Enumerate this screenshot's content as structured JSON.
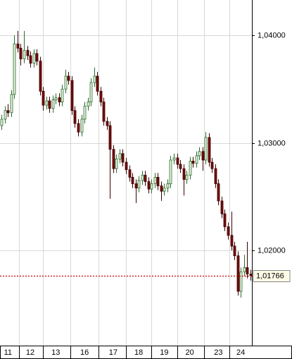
{
  "chart_data": {
    "type": "candlestick",
    "categories": [
      null,
      null,
      "11",
      null,
      null,
      null,
      null,
      null,
      null,
      "12",
      null,
      null,
      null,
      null,
      null,
      null,
      null,
      "13",
      null,
      null,
      null,
      null,
      null,
      null,
      null,
      null,
      "16",
      null,
      null,
      null,
      null,
      null,
      null,
      null,
      null,
      "17",
      null,
      null,
      null,
      null,
      null,
      null,
      null,
      "18",
      null,
      null,
      null,
      null,
      null,
      null,
      null,
      "19",
      null,
      null,
      null,
      null,
      null,
      null,
      null,
      "20",
      null,
      null,
      null,
      null,
      null,
      null,
      null,
      null,
      "23",
      null,
      null,
      null,
      null,
      null,
      null,
      "24",
      null,
      null,
      null
    ],
    "open": [
      1.0316,
      1.0322,
      1.033,
      1.0328,
      1.0345,
      1.0392,
      1.0388,
      1.0378,
      1.0386,
      1.0381,
      1.0374,
      1.0383,
      1.0376,
      1.0348,
      1.0335,
      1.0339,
      1.0332,
      1.034,
      1.0342,
      1.0338,
      1.035,
      1.0362,
      1.0358,
      1.033,
      1.0318,
      1.031,
      1.0322,
      1.0334,
      1.0338,
      1.0356,
      1.0362,
      1.0348,
      1.0338,
      1.032,
      1.0316,
      1.0294,
      1.0276,
      1.0285,
      1.029,
      1.0282,
      1.0275,
      1.0268,
      1.0262,
      1.0258,
      1.0265,
      1.027,
      1.0264,
      1.0257,
      1.0262,
      1.0268,
      1.026,
      1.0255,
      1.0258,
      1.0262,
      1.0284,
      1.0286,
      1.028,
      1.0276,
      1.0266,
      1.027,
      1.0283,
      1.0281,
      1.0288,
      1.0292,
      1.0284,
      1.0305,
      1.0282,
      1.0276,
      1.0262,
      1.0246,
      1.0234,
      1.0222,
      1.0214,
      1.0204,
      1.0195,
      1.0162,
      1.018,
      1.0184,
      1.0178
    ],
    "high": [
      1.0326,
      1.0334,
      1.0336,
      1.0349,
      1.04,
      1.0404,
      1.0392,
      1.0404,
      1.039,
      1.0385,
      1.0387,
      1.0387,
      1.038,
      1.0352,
      1.0343,
      1.0343,
      1.0344,
      1.0346,
      1.0346,
      1.0354,
      1.0368,
      1.0366,
      1.0362,
      1.0334,
      1.0322,
      1.0326,
      1.0338,
      1.0342,
      1.036,
      1.037,
      1.0366,
      1.0352,
      1.0342,
      1.0324,
      1.032,
      1.0298,
      1.0289,
      1.0294,
      1.0294,
      1.0286,
      1.0279,
      1.0272,
      1.0266,
      1.0269,
      1.0274,
      1.0274,
      1.0268,
      1.0266,
      1.0272,
      1.0272,
      1.0264,
      1.0262,
      1.0266,
      1.0288,
      1.029,
      1.029,
      1.0284,
      1.028,
      1.0274,
      1.0287,
      1.0287,
      1.0292,
      1.0296,
      1.0296,
      1.031,
      1.0309,
      1.0286,
      1.028,
      1.0266,
      1.025,
      1.0238,
      1.0226,
      1.0236,
      1.0208,
      1.0199,
      1.0184,
      1.0196,
      1.0208,
      1.0182
    ],
    "low": [
      1.0312,
      1.0318,
      1.0324,
      1.0324,
      1.0341,
      1.0384,
      1.0372,
      1.0374,
      1.0377,
      1.037,
      1.037,
      1.0372,
      1.0344,
      1.033,
      1.0331,
      1.0328,
      1.0328,
      1.0336,
      1.0334,
      1.0334,
      1.0346,
      1.0354,
      1.0326,
      1.0314,
      1.0306,
      1.0306,
      1.0318,
      1.033,
      1.0334,
      1.0352,
      1.0344,
      1.0334,
      1.0316,
      1.0312,
      1.0248,
      1.0272,
      1.0272,
      1.0281,
      1.0278,
      1.0271,
      1.0264,
      1.0258,
      1.0244,
      1.0254,
      1.0261,
      1.026,
      1.0253,
      1.0253,
      1.0258,
      1.0256,
      1.0246,
      1.0251,
      1.0254,
      1.0258,
      1.028,
      1.0276,
      1.0272,
      1.0251,
      1.0262,
      1.0266,
      1.0277,
      1.0277,
      1.0284,
      1.0274,
      1.028,
      1.0278,
      1.0272,
      1.0258,
      1.0242,
      1.023,
      1.0218,
      1.021,
      1.02,
      1.0191,
      1.0158,
      1.0156,
      1.0176,
      1.0174,
      1.0172
    ],
    "close": [
      1.0322,
      1.033,
      1.0328,
      1.0345,
      1.0392,
      1.0388,
      1.0378,
      1.0386,
      1.0381,
      1.0374,
      1.0383,
      1.0376,
      1.0348,
      1.0335,
      1.0339,
      1.0332,
      1.034,
      1.0342,
      1.0338,
      1.035,
      1.0362,
      1.0358,
      1.033,
      1.0318,
      1.031,
      1.0322,
      1.0334,
      1.0338,
      1.0356,
      1.0362,
      1.0348,
      1.0338,
      1.032,
      1.0316,
      1.0294,
      1.0276,
      1.0285,
      1.029,
      1.0282,
      1.0275,
      1.0268,
      1.0262,
      1.0258,
      1.0265,
      1.027,
      1.0264,
      1.0257,
      1.0262,
      1.0268,
      1.026,
      1.0255,
      1.0258,
      1.0262,
      1.0284,
      1.0286,
      1.028,
      1.0276,
      1.0266,
      1.027,
      1.0283,
      1.0281,
      1.0288,
      1.0292,
      1.0284,
      1.0305,
      1.0282,
      1.0276,
      1.0262,
      1.0246,
      1.0234,
      1.0222,
      1.0214,
      1.0204,
      1.0195,
      1.0162,
      1.018,
      1.0184,
      1.0178,
      1.01766
    ],
    "up_color": "#e6f4df",
    "up_edge": "#2e6b2e",
    "down_color": "#7a0a0a",
    "down_edge": "#3a0000",
    "ylim": [
      1.01115,
      1.04328
    ],
    "yticks": [
      {
        "value": 1.02,
        "label": "1,02000"
      },
      {
        "value": 1.03,
        "label": "1,03000"
      },
      {
        "value": 1.04,
        "label": "1,04000"
      }
    ],
    "grid": true,
    "last_price": {
      "value": 1.01766,
      "label": "1,01766"
    },
    "last_color": "#cc0000"
  }
}
